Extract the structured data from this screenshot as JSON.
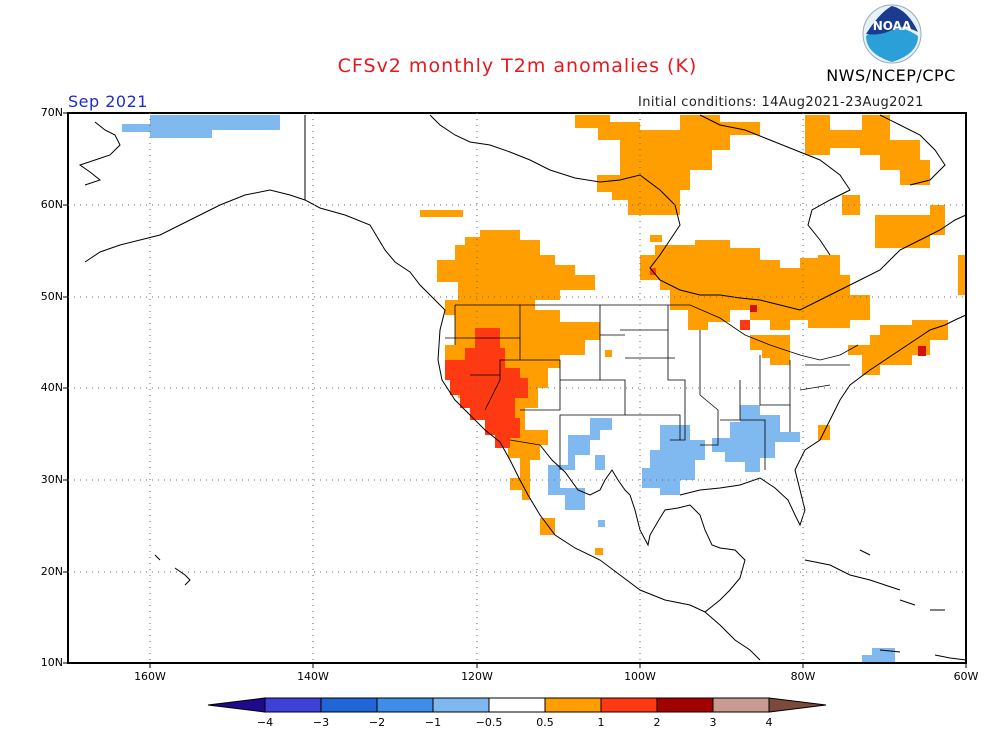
{
  "header": {
    "title": "CFSv2 monthly T2m anomalies (K)",
    "agency": "NWS/NCEP/CPC",
    "logo_text": "NOAA",
    "month": "Sep 2021",
    "initial_conditions": "Initial conditions: 14Aug2021-23Aug2021"
  },
  "axes": {
    "lat_labels": [
      "70N",
      "60N",
      "50N",
      "40N",
      "30N",
      "20N",
      "10N"
    ],
    "lon_labels": [
      "160W",
      "140W",
      "120W",
      "100W",
      "80W",
      "60W"
    ]
  },
  "colorbar": {
    "labels": [
      "−4",
      "−3",
      "−2",
      "−1",
      "−0.5",
      "0.5",
      "1",
      "2",
      "3",
      "4"
    ],
    "colors": [
      "#1e0a8c",
      "#3f3fd9",
      "#1f66d6",
      "#3d8ee8",
      "#7fb7f0",
      "#ffffff",
      "#ff9e00",
      "#ff3a12",
      "#a30000",
      "#c89a92",
      "#7a4a3a"
    ]
  },
  "colors": {
    "title": "#e8161e",
    "month": "#1d2bd6",
    "orange": "#ff9e00",
    "red": "#ff3a12",
    "darkred": "#d41010",
    "lightblue": "#80b8f0"
  }
}
